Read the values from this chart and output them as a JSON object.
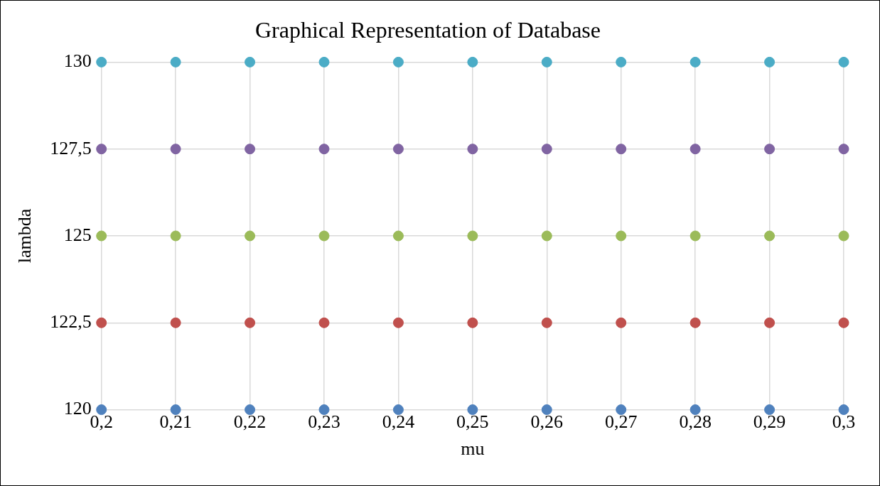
{
  "chart_data": {
    "type": "scatter",
    "title": "Graphical Representation of Database",
    "xlabel": "mu",
    "ylabel": "lambda",
    "x": [
      0.2,
      0.21,
      0.22,
      0.23,
      0.24,
      0.25,
      0.26,
      0.27,
      0.28,
      0.29,
      0.3
    ],
    "series": [
      {
        "color": "#4f81bd",
        "values": [
          120,
          120,
          120,
          120,
          120,
          120,
          120,
          120,
          120,
          120,
          120
        ]
      },
      {
        "color": "#c0504d",
        "values": [
          122.5,
          122.5,
          122.5,
          122.5,
          122.5,
          122.5,
          122.5,
          122.5,
          122.5,
          122.5,
          122.5
        ]
      },
      {
        "color": "#9bbb59",
        "values": [
          125,
          125,
          125,
          125,
          125,
          125,
          125,
          125,
          125,
          125,
          125
        ]
      },
      {
        "color": "#8064a2",
        "values": [
          127.5,
          127.5,
          127.5,
          127.5,
          127.5,
          127.5,
          127.5,
          127.5,
          127.5,
          127.5,
          127.5
        ]
      },
      {
        "color": "#4bacc6",
        "values": [
          130,
          130,
          130,
          130,
          130,
          130,
          130,
          130,
          130,
          130,
          130
        ]
      }
    ],
    "xlim": [
      0.2,
      0.3
    ],
    "xticks": [
      {
        "value": 0.2,
        "label": "0,2"
      },
      {
        "value": 0.21,
        "label": "0,21"
      },
      {
        "value": 0.22,
        "label": "0,22"
      },
      {
        "value": 0.23,
        "label": "0,23"
      },
      {
        "value": 0.24,
        "label": "0,24"
      },
      {
        "value": 0.25,
        "label": "0,25"
      },
      {
        "value": 0.26,
        "label": "0,26"
      },
      {
        "value": 0.27,
        "label": "0,27"
      },
      {
        "value": 0.28,
        "label": "0,28"
      },
      {
        "value": 0.29,
        "label": "0,29"
      },
      {
        "value": 0.3,
        "label": "0,3"
      }
    ],
    "ylim": [
      120,
      130
    ],
    "yticks": [
      120,
      {
        "value": 122.5,
        "label": "122,5"
      },
      125,
      {
        "value": 127.5,
        "label": "127,5"
      },
      130
    ],
    "grid": true,
    "legend": false,
    "marker": "circle"
  }
}
